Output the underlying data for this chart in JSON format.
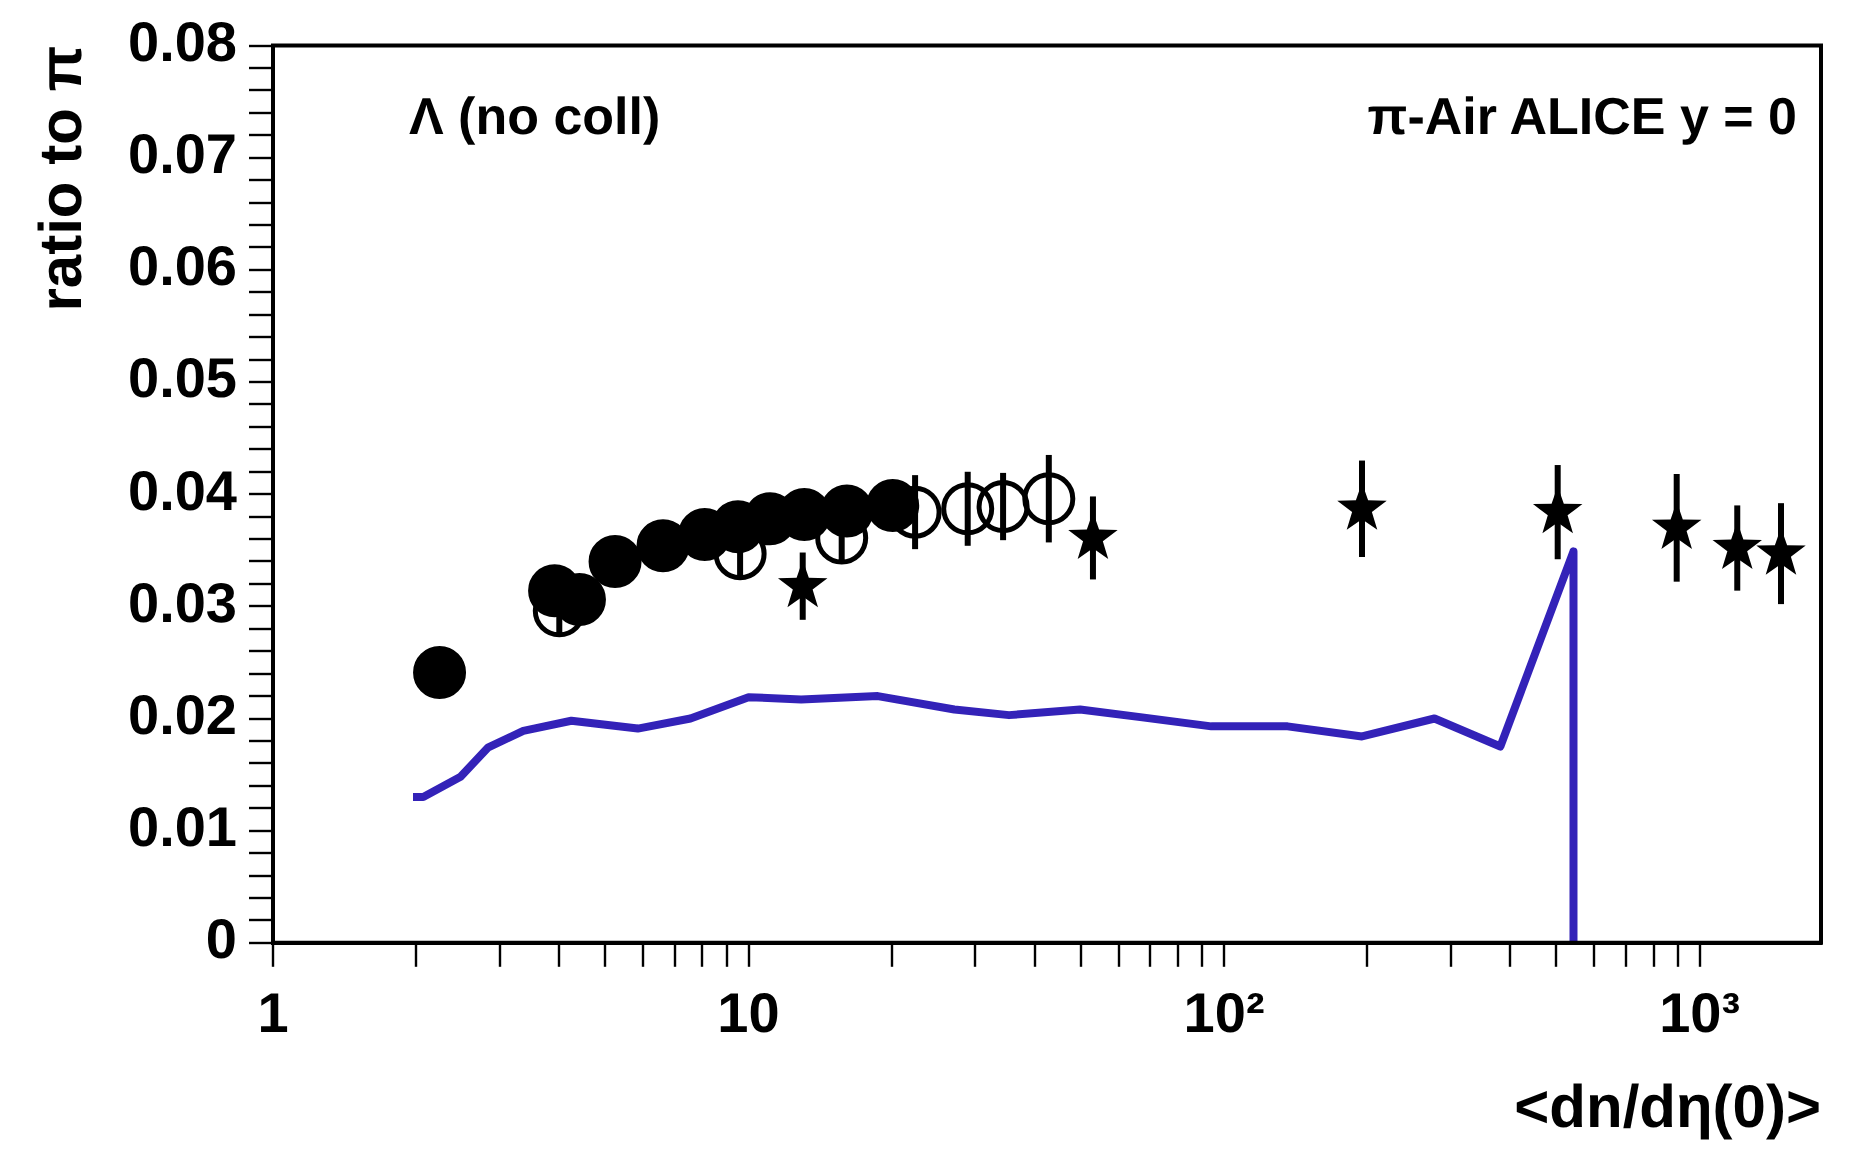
{
  "chart_data": {
    "type": "scatter",
    "ylabel": "ratio to π",
    "xlabel": "<dn/dη(0)>",
    "log": "x",
    "grid": false,
    "legend": false,
    "annotations": [
      "Λ (no coll)",
      "π-Air ALICE y = 0"
    ],
    "xlim": [
      1,
      1800
    ],
    "ylim": [
      0,
      0.08
    ],
    "xticks": [
      1,
      {
        "value": 2,
        "label": null
      },
      {
        "value": 3,
        "label": null
      },
      {
        "value": 4,
        "label": null
      },
      {
        "value": 5,
        "label": null
      },
      {
        "value": 6,
        "label": null
      },
      {
        "value": 7,
        "label": null
      },
      {
        "value": 8,
        "label": null
      },
      {
        "value": 9,
        "label": null
      },
      10,
      {
        "value": 20,
        "label": null
      },
      {
        "value": 30,
        "label": null
      },
      {
        "value": 40,
        "label": null
      },
      {
        "value": 50,
        "label": null
      },
      {
        "value": 60,
        "label": null
      },
      {
        "value": 70,
        "label": null
      },
      {
        "value": 80,
        "label": null
      },
      {
        "value": 90,
        "label": null
      },
      {
        "value": 100,
        "label": "10²"
      },
      {
        "value": 200,
        "label": null
      },
      {
        "value": 300,
        "label": null
      },
      {
        "value": 400,
        "label": null
      },
      {
        "value": 500,
        "label": null
      },
      {
        "value": 600,
        "label": null
      },
      {
        "value": 700,
        "label": null
      },
      {
        "value": 800,
        "label": null
      },
      {
        "value": 900,
        "label": null
      },
      {
        "value": 1000,
        "label": "10³"
      }
    ],
    "yticks": [
      0,
      {
        "value": 0.002,
        "label": null
      },
      {
        "value": 0.004,
        "label": null
      },
      {
        "value": 0.006,
        "label": null
      },
      {
        "value": 0.008,
        "label": null
      },
      0.01,
      {
        "value": 0.012,
        "label": null
      },
      {
        "value": 0.014,
        "label": null
      },
      {
        "value": 0.016,
        "label": null
      },
      {
        "value": 0.018,
        "label": null
      },
      0.02,
      {
        "value": 0.022,
        "label": null
      },
      {
        "value": 0.024,
        "label": null
      },
      {
        "value": 0.026,
        "label": null
      },
      {
        "value": 0.028,
        "label": null
      },
      0.03,
      {
        "value": 0.032,
        "label": null
      },
      {
        "value": 0.034,
        "label": null
      },
      {
        "value": 0.036,
        "label": null
      },
      {
        "value": 0.038,
        "label": null
      },
      0.04,
      {
        "value": 0.042,
        "label": null
      },
      {
        "value": 0.044,
        "label": null
      },
      {
        "value": 0.046,
        "label": null
      },
      {
        "value": 0.048,
        "label": null
      },
      0.05,
      {
        "value": 0.052,
        "label": null
      },
      {
        "value": 0.054,
        "label": null
      },
      {
        "value": 0.056,
        "label": null
      },
      {
        "value": 0.058,
        "label": null
      },
      0.06,
      {
        "value": 0.062,
        "label": null
      },
      {
        "value": 0.064,
        "label": null
      },
      {
        "value": 0.066,
        "label": null
      },
      {
        "value": 0.068,
        "label": null
      },
      0.07,
      {
        "value": 0.072,
        "label": null
      },
      {
        "value": 0.074,
        "label": null
      },
      {
        "value": 0.076,
        "label": null
      },
      {
        "value": 0.078,
        "label": null
      },
      0.08
    ],
    "series": [
      {
        "type": "line",
        "marker": "none",
        "color": "#3322b8",
        "x": [
          1.97,
          2.07,
          2.48,
          2.83,
          3.36,
          4.24,
          5.85,
          7.55,
          10.0,
          12.9,
          18.7,
          27.1,
          35.3,
          49.8,
          67.3,
          94,
          136,
          195,
          277,
          381,
          543,
          543
        ],
        "values": [
          0.013,
          0.013,
          0.0148,
          0.0174,
          0.0189,
          0.0198,
          0.0191,
          0.02,
          0.0219,
          0.0217,
          0.022,
          0.0208,
          0.0203,
          0.0208,
          0.0201,
          0.0193,
          0.0193,
          0.0184,
          0.02,
          0.0175,
          0.0349,
          0
        ]
      },
      {
        "marker": "circle",
        "color": "#000000",
        "x": [
          4.0,
          9.6,
          15.7,
          22.4,
          28.9,
          34.3,
          42.8
        ],
        "values": [
          0.0296,
          0.0347,
          0.0361,
          0.0384,
          0.0387,
          0.0389,
          0.0396
        ],
        "errors": [
          0.002,
          0.002,
          0.002,
          0.0033,
          0.0033,
          0.003,
          0.0039
        ]
      },
      {
        "marker": "circle",
        "color": "#000000",
        "x": [
          2.24,
          3.91,
          4.41,
          5.24,
          6.61,
          8.09,
          9.5,
          11.1,
          13.1,
          16.1,
          20.1
        ],
        "values": [
          0.0241,
          0.0314,
          0.0306,
          0.034,
          0.0354,
          0.0364,
          0.0371,
          0.0378,
          0.0382,
          0.0385,
          0.039
        ]
      },
      {
        "marker": "star",
        "color": "#000000",
        "x": [
          13.0,
          53,
          195,
          503,
          895,
          1200,
          1483
        ],
        "values": [
          0.0318,
          0.0361,
          0.0387,
          0.0384,
          0.037,
          0.0352,
          0.0347
        ],
        "errors": [
          0.003,
          0.0037,
          0.0043,
          0.0042,
          0.0048,
          0.0038,
          0.0045
        ]
      }
    ]
  }
}
